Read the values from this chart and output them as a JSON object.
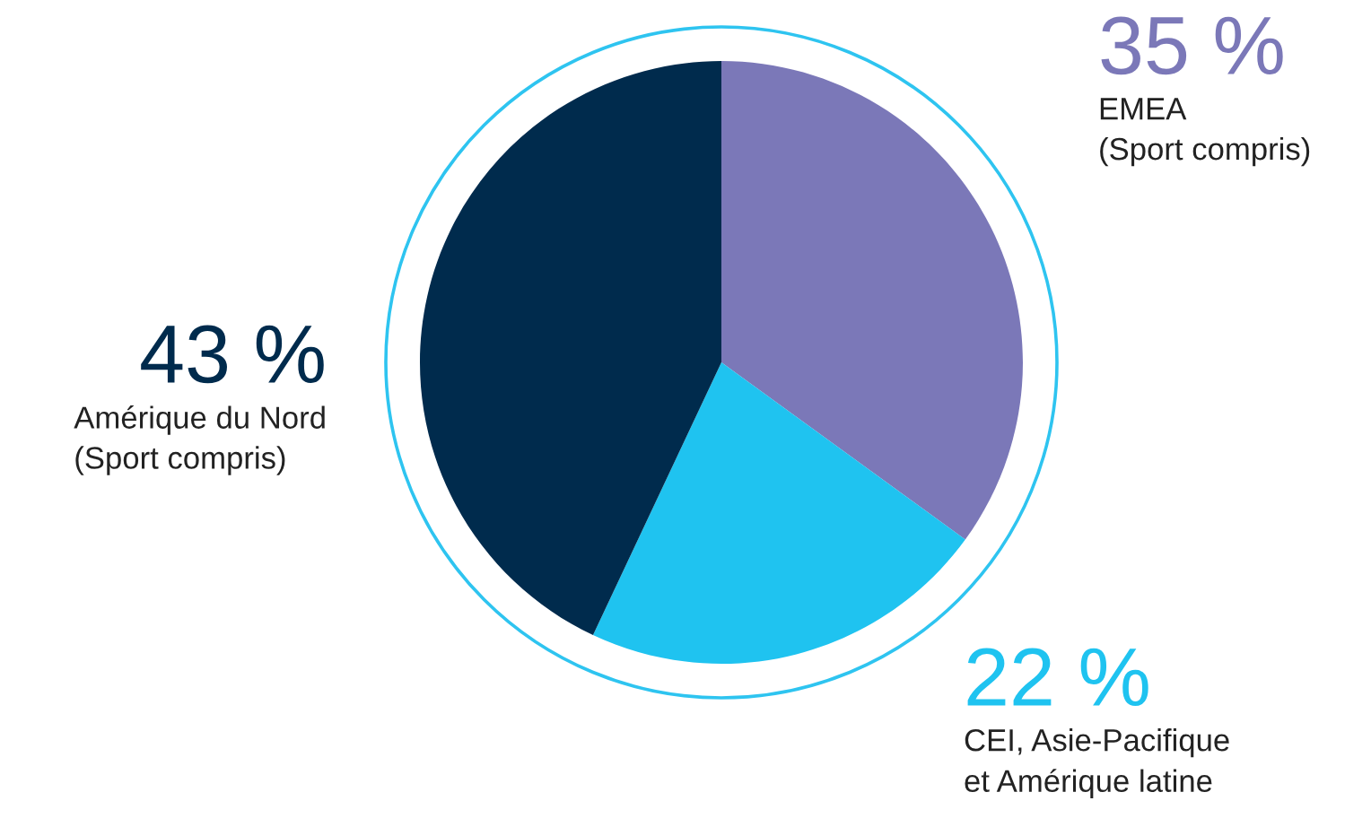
{
  "chart_data": {
    "type": "pie",
    "categories": [
      "EMEA\n(Sport compris)",
      "CEI, Asie-Pacifique\net Amérique latine",
      "Amérique du Nord\n(Sport compris)"
    ],
    "values": [
      35,
      22,
      43
    ],
    "colors": [
      "#7b78b8",
      "#1fc3f0",
      "#002b4d"
    ],
    "value_labels": [
      "35 %",
      "22 %",
      "43 %"
    ]
  }
}
